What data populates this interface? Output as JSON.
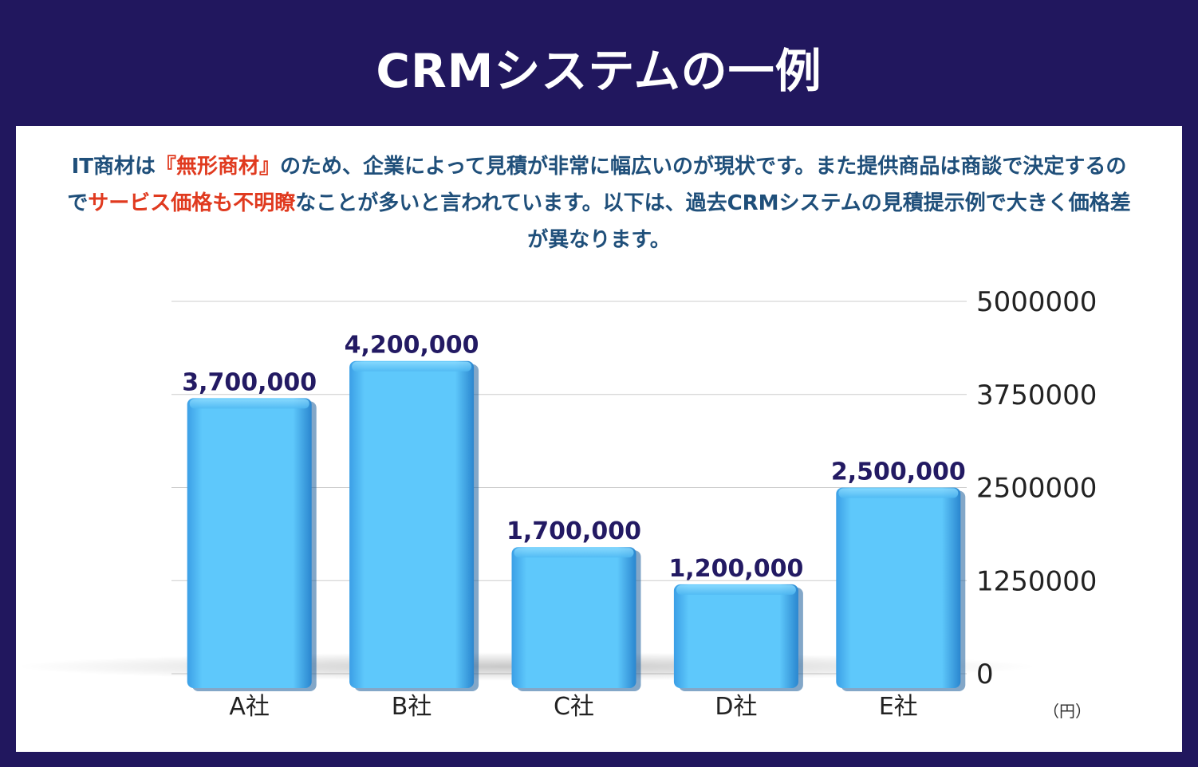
{
  "header": {
    "title": "CRMシステムの一例"
  },
  "intro": {
    "part1": "IT商材は",
    "highlight1": "『無形商材』",
    "part2": "のため、企業によって見積が非常に幅広いのが現状です。また提供商品は商談で決定するので",
    "highlight2": "サービス価格も不明瞭",
    "part3": "なことが多いと言われています。以下は、過去CRMシステムの見積提示例で大きく価格差が異なります。"
  },
  "colors": {
    "background": "#21175e",
    "bar": "#5ec8fb",
    "bar_dark": "#2f8fd6",
    "data_label": "#231a63",
    "highlight": "#e03a1f",
    "intro_text": "#1f4f7a"
  },
  "chart_data": {
    "type": "bar",
    "categories": [
      "A社",
      "B社",
      "C社",
      "D社",
      "E社"
    ],
    "values": [
      3700000,
      4200000,
      1700000,
      1200000,
      2500000
    ],
    "data_labels": [
      "3,700,000",
      "4,200,000",
      "1,700,000",
      "1,200,000",
      "2,500,000"
    ],
    "y_ticks": [
      0,
      1250000,
      2500000,
      3750000,
      5000000
    ],
    "y_tick_labels": [
      "0",
      "1250000",
      "2500000",
      "3750000",
      "5000000"
    ],
    "ylim": [
      0,
      5000000
    ],
    "y_axis_side": "right",
    "grid": true,
    "unit": "（円）"
  }
}
